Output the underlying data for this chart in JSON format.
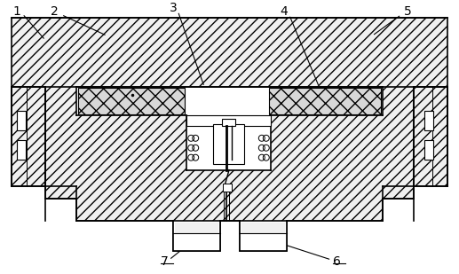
{
  "bg_color": "#ffffff",
  "line_color": "#000000",
  "body_fill": "#f0f0f0",
  "foam_fill": "#d8d8d8",
  "white": "#ffffff"
}
